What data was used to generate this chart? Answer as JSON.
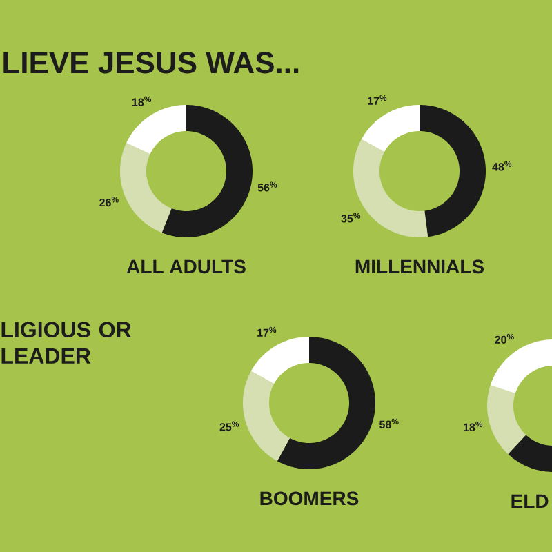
{
  "chart_data": [
    {
      "type": "other",
      "title": "LIEVE JESUS WAS...",
      "annotations": [
        "LIGIOUS OR LEADER"
      ]
    },
    {
      "type": "donut",
      "title": "ALL ADULTS",
      "categories": [
        null,
        null,
        null
      ],
      "values": [
        56,
        26,
        18
      ],
      "colors": [
        "#1b1b1b",
        "#d5dfb2",
        "#ffffff"
      ],
      "value_labels": [
        "56$^{%}$",
        "26$^{%}$",
        "18$^{%}$"
      ]
    },
    {
      "type": "donut",
      "title": "MILLENNIALS",
      "categories": [
        null,
        null,
        null
      ],
      "values": [
        48,
        35,
        17
      ],
      "colors": [
        "#1b1b1b",
        "#d5dfb2",
        "#ffffff"
      ],
      "value_labels": [
        "48$^{%}$",
        "35$^{%}$",
        "17$^{%}$"
      ]
    },
    {
      "type": "donut",
      "title": "BOOMERS",
      "categories": [
        null,
        null,
        null
      ],
      "values": [
        58,
        25,
        17
      ],
      "colors": [
        "#1b1b1b",
        "#d5dfb2",
        "#ffffff"
      ],
      "value_labels": [
        "58$^{%}$",
        "25$^{%}$",
        "17$^{%}$"
      ]
    },
    {
      "type": "donut",
      "title": "ELD",
      "categories": [
        null,
        null,
        null
      ],
      "values": [
        62,
        18,
        20
      ],
      "colors": [
        "#1b1b1b",
        "#d5dfb2",
        "#ffffff"
      ],
      "value_labels": [
        null,
        "18$^{%}$",
        "20$^{%}$"
      ]
    }
  ]
}
